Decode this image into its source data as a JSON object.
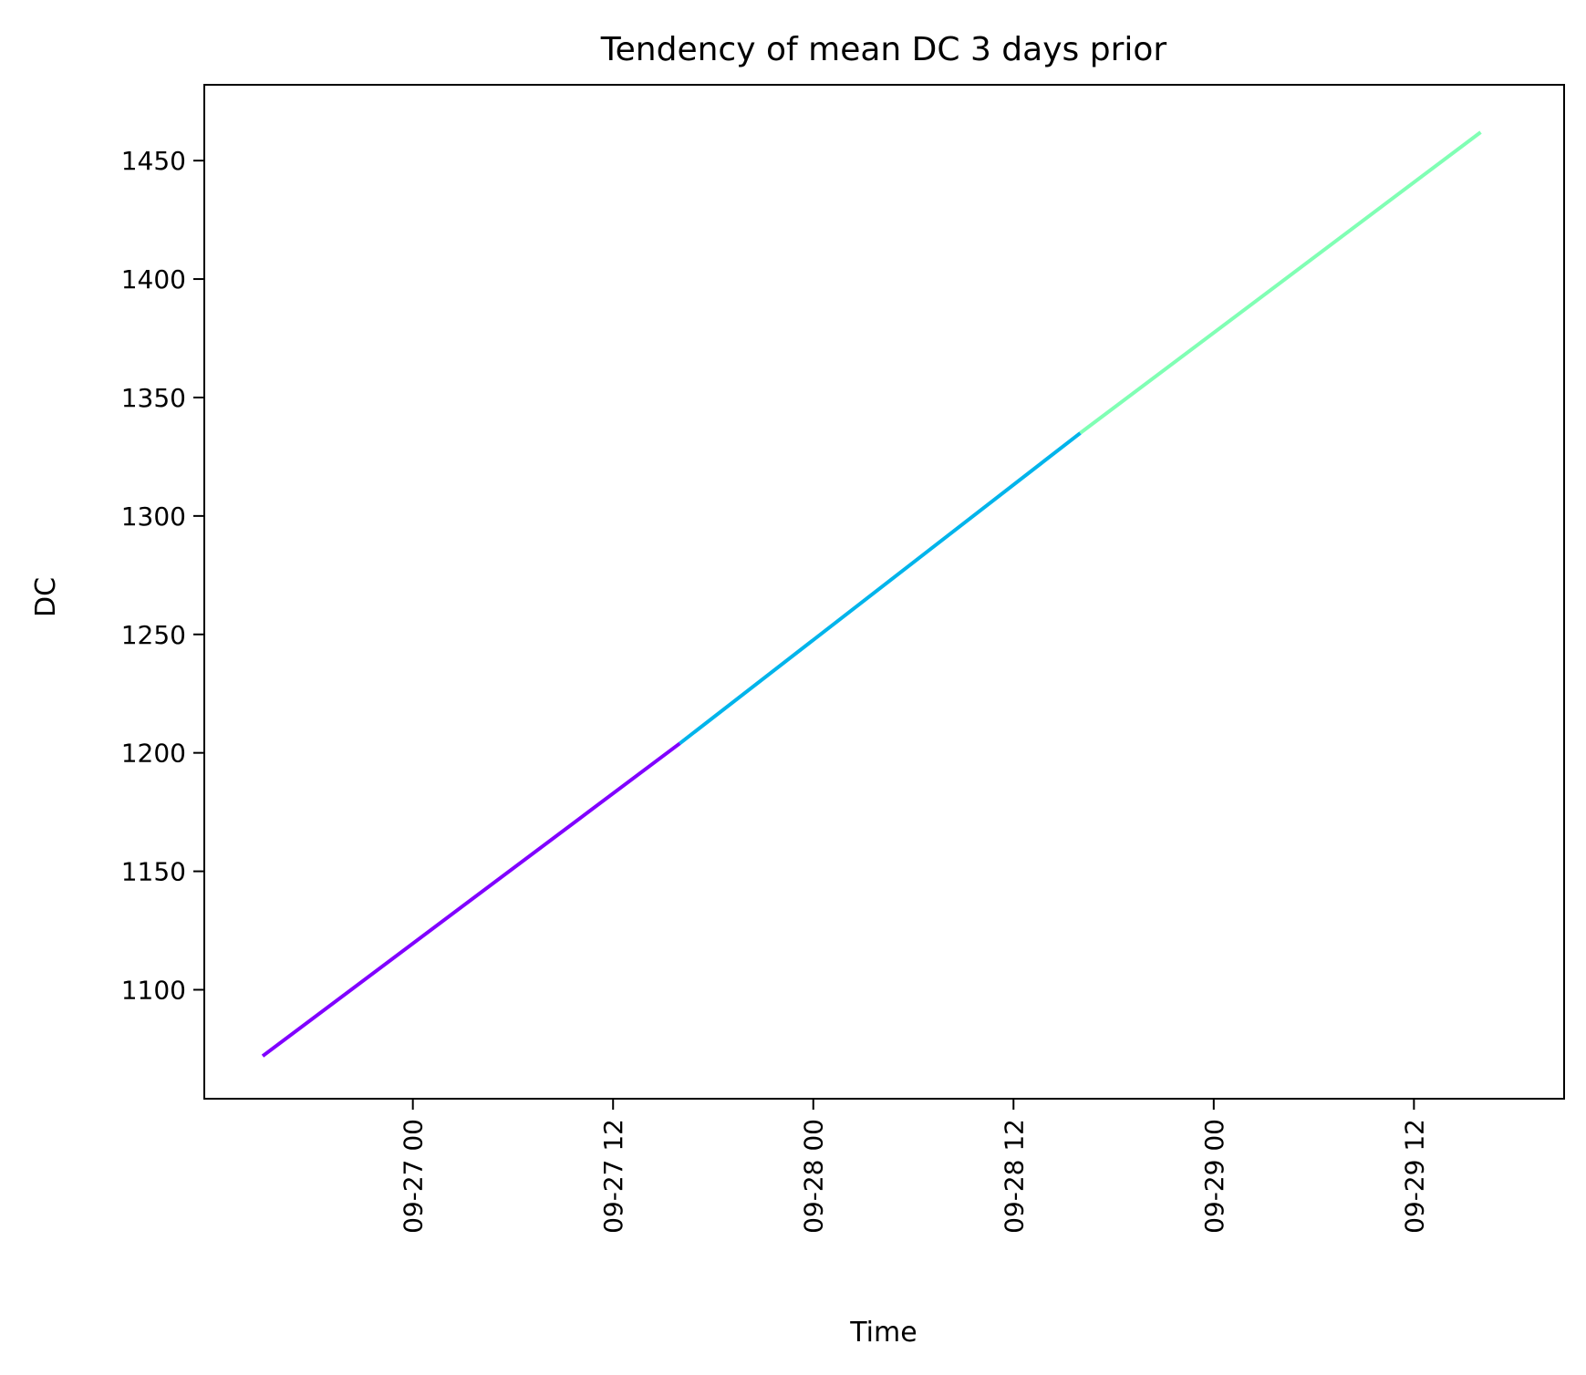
{
  "chart_data": {
    "type": "line",
    "title": "Tendency of mean DC 3 days prior",
    "xlabel": "Time",
    "ylabel": "DC",
    "grid": false,
    "legend": "none",
    "x_ticks": [
      "09-27 00",
      "09-27 12",
      "09-28 00",
      "09-28 12",
      "09-29 00",
      "09-29 12"
    ],
    "x_tick_values": [
      "09-27 00:00",
      "09-27 12:00",
      "09-28 00:00",
      "09-28 12:00",
      "09-29 00:00",
      "09-29 12:00"
    ],
    "y_ticks": [
      1100,
      1150,
      1200,
      1250,
      1300,
      1350,
      1400,
      1450
    ],
    "xlim": [
      "09-26 11:30",
      "09-29 21:00"
    ],
    "ylim": [
      1054,
      1482
    ],
    "segments": [
      {
        "color": "#8000ff",
        "x": [
          "09-26 15:00",
          "09-27 16:00"
        ],
        "y": [
          1072,
          1204
        ]
      },
      {
        "color": "#00b4eb",
        "x": [
          "09-27 16:00",
          "09-28 16:00"
        ],
        "y": [
          1204,
          1335
        ]
      },
      {
        "color": "#80ffb4",
        "x": [
          "09-28 16:00",
          "09-29 16:00"
        ],
        "y": [
          1335,
          1462
        ]
      }
    ]
  }
}
